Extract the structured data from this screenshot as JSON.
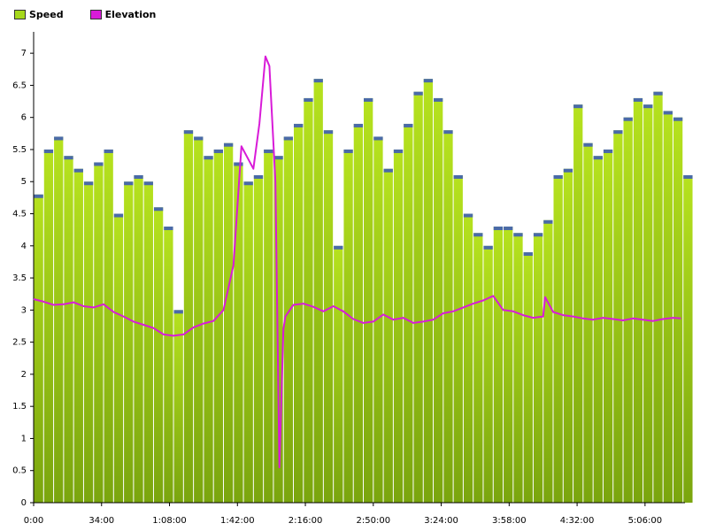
{
  "chart_data": {
    "type": "bar",
    "title": "",
    "xlabel": "",
    "ylabel": "",
    "ylim": [
      0,
      7.25
    ],
    "xlim": [
      "0:00",
      "5:26:00"
    ],
    "grid": false,
    "legend_position": "top-left",
    "x_ticks": [
      "0:00",
      "34:00",
      "1:08:00",
      "1:42:00",
      "2:16:00",
      "2:50:00",
      "3:24:00",
      "3:58:00",
      "4:32:00",
      "5:06:00"
    ],
    "y_ticks": [
      "0",
      "0.5",
      "1",
      "1.5",
      "2",
      "2.5",
      "3",
      "3.5",
      "4",
      "4.5",
      "5",
      "5.5",
      "6",
      "6.5",
      "7"
    ],
    "series": [
      {
        "name": "Speed",
        "kind": "bar",
        "color": "#a6d81c",
        "time_minutes": [
          0,
          5,
          10,
          15,
          20,
          25,
          30,
          35,
          40,
          45,
          50,
          55,
          60,
          65,
          70,
          75,
          80,
          85,
          90,
          95,
          100,
          105,
          110,
          115,
          120,
          125,
          130,
          135,
          140,
          145,
          150,
          155,
          160,
          165,
          170,
          175,
          180,
          185,
          190,
          195,
          200,
          205,
          210,
          215,
          220,
          225,
          230,
          235,
          240,
          245,
          250,
          255,
          260,
          265,
          270,
          275,
          280,
          285,
          290,
          295,
          300,
          305,
          310,
          315,
          320,
          325
        ],
        "values": [
          4.8,
          5.5,
          5.7,
          5.4,
          5.2,
          5.0,
          5.3,
          5.5,
          4.5,
          5.0,
          5.1,
          5.0,
          4.6,
          4.3,
          3.0,
          5.8,
          5.7,
          5.4,
          5.5,
          5.6,
          5.3,
          5.0,
          5.1,
          5.5,
          5.4,
          5.7,
          5.9,
          6.3,
          6.6,
          5.8,
          4.0,
          5.5,
          5.9,
          6.3,
          5.7,
          5.2,
          5.5,
          5.9,
          6.4,
          6.6,
          6.3,
          5.8,
          5.1,
          4.5,
          4.2,
          4.0,
          4.3,
          4.3,
          4.2,
          3.9,
          4.2,
          4.4,
          5.1,
          5.2,
          6.2,
          5.6,
          5.4,
          5.5,
          5.8,
          6.0,
          6.3,
          6.2,
          6.4,
          6.1,
          6.0,
          5.1
        ]
      },
      {
        "name": "Elevation",
        "kind": "line",
        "color": "#d81bd8",
        "time_minutes": [
          0,
          5,
          10,
          15,
          20,
          25,
          30,
          35,
          40,
          45,
          50,
          55,
          60,
          65,
          70,
          75,
          80,
          85,
          90,
          95,
          100,
          104,
          110,
          113,
          116,
          118,
          121,
          123,
          125,
          126,
          130,
          135,
          140,
          145,
          150,
          155,
          160,
          165,
          170,
          175,
          180,
          185,
          190,
          195,
          200,
          205,
          210,
          215,
          220,
          225,
          230,
          235,
          240,
          245,
          250,
          255,
          256,
          260,
          265,
          270,
          275,
          280,
          285,
          290,
          295,
          300,
          305,
          310,
          315,
          320,
          324
        ],
        "values": [
          3.17,
          3.13,
          3.08,
          3.09,
          3.12,
          3.06,
          3.04,
          3.09,
          2.97,
          2.9,
          2.82,
          2.77,
          2.72,
          2.62,
          2.6,
          2.62,
          2.73,
          2.79,
          2.83,
          3.0,
          3.7,
          5.55,
          5.2,
          5.9,
          6.95,
          6.8,
          5.0,
          0.55,
          2.7,
          2.9,
          3.08,
          3.1,
          3.05,
          2.98,
          3.06,
          2.98,
          2.86,
          2.8,
          2.82,
          2.93,
          2.85,
          2.88,
          2.8,
          2.82,
          2.85,
          2.95,
          2.98,
          3.04,
          3.1,
          3.15,
          3.22,
          3.0,
          2.98,
          2.92,
          2.88,
          2.9,
          3.2,
          2.97,
          2.92,
          2.9,
          2.87,
          2.85,
          2.88,
          2.86,
          2.84,
          2.87,
          2.85,
          2.83,
          2.86,
          2.88,
          2.87
        ]
      }
    ]
  }
}
